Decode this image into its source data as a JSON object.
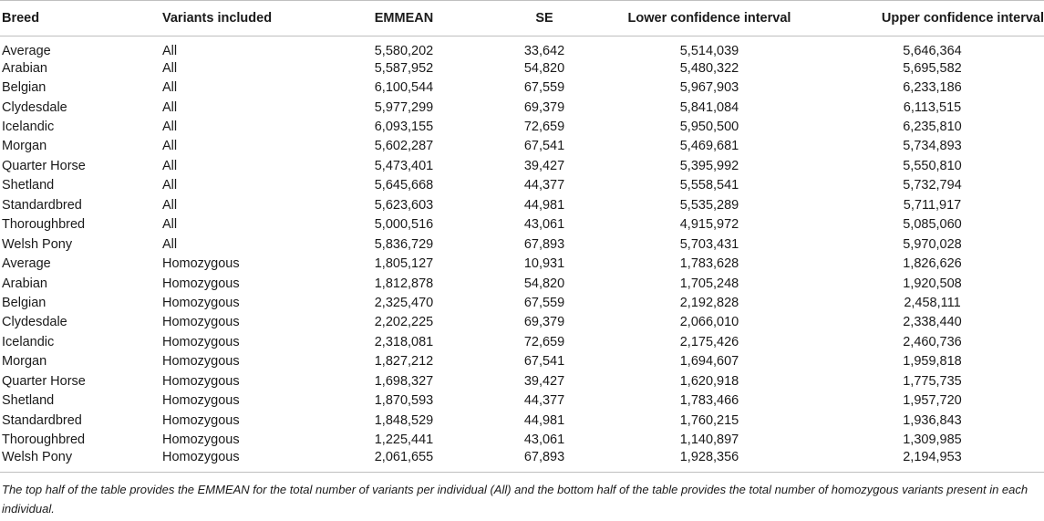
{
  "table": {
    "headers": {
      "breed": "Breed",
      "variants": "Variants included",
      "emmean": "EMMEAN",
      "se": "SE",
      "lower": "Lower confidence interval",
      "upper": "Upper confidence interval"
    },
    "rows": [
      {
        "breed": "Average",
        "variants": "All",
        "emmean": "5,580,202",
        "se": "33,642",
        "lower": "5,514,039",
        "upper": "5,646,364"
      },
      {
        "breed": "Arabian",
        "variants": "All",
        "emmean": "5,587,952",
        "se": "54,820",
        "lower": "5,480,322",
        "upper": "5,695,582"
      },
      {
        "breed": "Belgian",
        "variants": "All",
        "emmean": "6,100,544",
        "se": "67,559",
        "lower": "5,967,903",
        "upper": "6,233,186"
      },
      {
        "breed": "Clydesdale",
        "variants": "All",
        "emmean": "5,977,299",
        "se": "69,379",
        "lower": "5,841,084",
        "upper": "6,113,515"
      },
      {
        "breed": "Icelandic",
        "variants": "All",
        "emmean": "6,093,155",
        "se": "72,659",
        "lower": "5,950,500",
        "upper": "6,235,810"
      },
      {
        "breed": "Morgan",
        "variants": "All",
        "emmean": "5,602,287",
        "se": "67,541",
        "lower": "5,469,681",
        "upper": "5,734,893"
      },
      {
        "breed": "Quarter Horse",
        "variants": "All",
        "emmean": "5,473,401",
        "se": "39,427",
        "lower": "5,395,992",
        "upper": "5,550,810"
      },
      {
        "breed": "Shetland",
        "variants": "All",
        "emmean": "5,645,668",
        "se": "44,377",
        "lower": "5,558,541",
        "upper": "5,732,794"
      },
      {
        "breed": "Standardbred",
        "variants": "All",
        "emmean": "5,623,603",
        "se": "44,981",
        "lower": "5,535,289",
        "upper": "5,711,917"
      },
      {
        "breed": "Thoroughbred",
        "variants": "All",
        "emmean": "5,000,516",
        "se": "43,061",
        "lower": "4,915,972",
        "upper": "5,085,060"
      },
      {
        "breed": "Welsh Pony",
        "variants": "All",
        "emmean": "5,836,729",
        "se": "67,893",
        "lower": "5,703,431",
        "upper": "5,970,028"
      },
      {
        "breed": "Average",
        "variants": "Homozygous",
        "emmean": "1,805,127",
        "se": "10,931",
        "lower": "1,783,628",
        "upper": "1,826,626"
      },
      {
        "breed": "Arabian",
        "variants": "Homozygous",
        "emmean": "1,812,878",
        "se": "54,820",
        "lower": "1,705,248",
        "upper": "1,920,508"
      },
      {
        "breed": "Belgian",
        "variants": "Homozygous",
        "emmean": "2,325,470",
        "se": "67,559",
        "lower": "2,192,828",
        "upper": "2,458,111"
      },
      {
        "breed": "Clydesdale",
        "variants": "Homozygous",
        "emmean": "2,202,225",
        "se": "69,379",
        "lower": "2,066,010",
        "upper": "2,338,440"
      },
      {
        "breed": "Icelandic",
        "variants": "Homozygous",
        "emmean": "2,318,081",
        "se": "72,659",
        "lower": "2,175,426",
        "upper": "2,460,736"
      },
      {
        "breed": "Morgan",
        "variants": "Homozygous",
        "emmean": "1,827,212",
        "se": "67,541",
        "lower": "1,694,607",
        "upper": "1,959,818"
      },
      {
        "breed": "Quarter Horse",
        "variants": "Homozygous",
        "emmean": "1,698,327",
        "se": "39,427",
        "lower": "1,620,918",
        "upper": "1,775,735"
      },
      {
        "breed": "Shetland",
        "variants": "Homozygous",
        "emmean": "1,870,593",
        "se": "44,377",
        "lower": "1,783,466",
        "upper": "1,957,720"
      },
      {
        "breed": "Standardbred",
        "variants": "Homozygous",
        "emmean": "1,848,529",
        "se": "44,981",
        "lower": "1,760,215",
        "upper": "1,936,843"
      },
      {
        "breed": "Thoroughbred",
        "variants": "Homozygous",
        "emmean": "1,225,441",
        "se": "43,061",
        "lower": "1,140,897",
        "upper": "1,309,985"
      },
      {
        "breed": "Welsh Pony",
        "variants": "Homozygous",
        "emmean": "2,061,655",
        "se": "67,893",
        "lower": "1,928,356",
        "upper": "2,194,953"
      }
    ]
  },
  "caption": "The top half of the table provides the EMMEAN for the total number of variants per individual (All) and the bottom half of the table provides the total number of homozygous variants present in each individual."
}
